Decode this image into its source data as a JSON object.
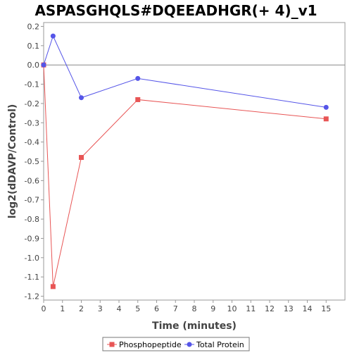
{
  "chart_data": {
    "type": "line",
    "title": "ASPASGHQLS#DQEEADHGR(+ 4)_v1",
    "xlabel": "Time (minutes)",
    "ylabel": "log2(dDAVP/Control)",
    "xlim": [
      0,
      16
    ],
    "ylim": [
      -1.22,
      0.22
    ],
    "xticks": [
      0,
      1,
      2,
      3,
      4,
      5,
      6,
      7,
      8,
      9,
      10,
      11,
      12,
      13,
      14,
      15
    ],
    "yticks": [
      0.2,
      0.1,
      0.0,
      -0.1,
      -0.2,
      -0.3,
      -0.4,
      -0.5,
      -0.6,
      -0.7,
      -0.8,
      -0.9,
      -1.0,
      -1.1,
      -1.2
    ],
    "ytick_labels": [
      "0.2",
      "0.1",
      "0.0",
      "-0.1",
      "-0.2",
      "-0.3",
      "-0.4",
      "-0.5",
      "-0.6",
      "-0.7",
      "-0.8",
      "-0.9",
      "-1.0",
      "-1.1",
      "-1.2"
    ],
    "grid": false,
    "reference_line_y": 0,
    "legend_position": "bottom",
    "series": [
      {
        "name": "Phosphopeptide",
        "color": "#e85555",
        "marker": "square",
        "x": [
          0,
          0.5,
          2,
          5,
          15
        ],
        "y": [
          0.0,
          -1.15,
          -0.48,
          -0.18,
          -0.28
        ]
      },
      {
        "name": "Total Protein",
        "color": "#5555e8",
        "marker": "circle",
        "x": [
          0,
          0.5,
          2,
          5,
          15
        ],
        "y": [
          0.0,
          0.15,
          -0.17,
          -0.07,
          -0.22
        ]
      }
    ]
  }
}
